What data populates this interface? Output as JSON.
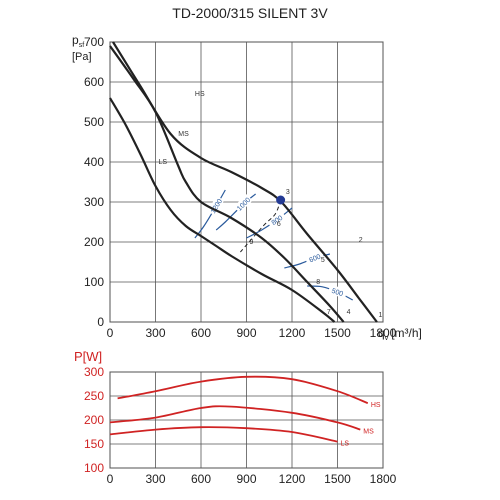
{
  "chart_data": [
    {
      "type": "line",
      "title": "TD-2000/315 SILENT 3V",
      "ylabel_main": "p",
      "ylabel_sub": "sf",
      "ylabel_unit": "[Pa]",
      "xlabel_main": "q",
      "xlabel_sub": "v",
      "xlabel_unit": "[m³/h]",
      "xlim": [
        0,
        1800
      ],
      "ylim": [
        0,
        700
      ],
      "x_ticks": [
        0,
        300,
        600,
        900,
        1200,
        1500,
        1800
      ],
      "y_ticks": [
        0,
        100,
        200,
        300,
        400,
        500,
        600,
        700
      ],
      "grid": true,
      "series": [
        {
          "name": "HS",
          "color": "#222222",
          "points": [
            [
              20,
              700
            ],
            [
              200,
              590
            ],
            [
              400,
              470
            ],
            [
              600,
              410
            ],
            [
              800,
              375
            ],
            [
              1000,
              335
            ],
            [
              1130,
              300
            ],
            [
              1300,
              220
            ],
            [
              1500,
              130
            ],
            [
              1640,
              60
            ],
            [
              1760,
              0
            ]
          ]
        },
        {
          "name": "MS",
          "color": "#222222",
          "points": [
            [
              0,
              690
            ],
            [
              150,
              610
            ],
            [
              300,
              525
            ],
            [
              450,
              390
            ],
            [
              500,
              350
            ],
            [
              600,
              300
            ],
            [
              800,
              260
            ],
            [
              1000,
              210
            ],
            [
              1150,
              160
            ],
            [
              1300,
              100
            ],
            [
              1450,
              40
            ],
            [
              1540,
              0
            ]
          ]
        },
        {
          "name": "LS",
          "color": "#222222",
          "points": [
            [
              0,
              560
            ],
            [
              100,
              495
            ],
            [
              200,
              420
            ],
            [
              300,
              340
            ],
            [
              400,
              280
            ],
            [
              500,
              240
            ],
            [
              600,
              215
            ],
            [
              700,
              190
            ],
            [
              800,
              165
            ],
            [
              1000,
              120
            ],
            [
              1200,
              80
            ],
            [
              1400,
              25
            ],
            [
              1480,
              0
            ]
          ]
        }
      ],
      "resistance_curves": [
        {
          "name": "1200",
          "color": "#2a5a9c",
          "points": [
            [
              560,
              210
            ],
            [
              620,
              240
            ],
            [
              700,
              290
            ],
            [
              760,
              330
            ]
          ]
        },
        {
          "name": "1000",
          "color": "#2a5a9c",
          "points": [
            [
              700,
              230
            ],
            [
              760,
              250
            ],
            [
              880,
              295
            ],
            [
              960,
              320
            ]
          ]
        },
        {
          "name": "800",
          "color": "#2a5a9c",
          "points": [
            [
              900,
              210
            ],
            [
              1000,
              230
            ],
            [
              1100,
              255
            ],
            [
              1200,
              285
            ]
          ]
        },
        {
          "name": "600",
          "color": "#2a5a9c",
          "points": [
            [
              1150,
              135
            ],
            [
              1250,
              145
            ],
            [
              1350,
              160
            ],
            [
              1450,
              170
            ]
          ]
        },
        {
          "name": "500",
          "color": "#2a5a9c",
          "points": [
            [
              1300,
              90
            ],
            [
              1400,
              88
            ],
            [
              1500,
              75
            ],
            [
              1600,
              55
            ]
          ]
        }
      ],
      "dashed_lines": [
        {
          "points": [
            [
              1125,
              305
            ],
            [
              1090,
              270
            ],
            [
              1010,
              240
            ],
            [
              860,
              175
            ]
          ]
        }
      ],
      "marked_point": {
        "x": 1125,
        "y": 305,
        "color": "#233a94"
      },
      "point_labels": [
        {
          "text": "1",
          "x": 1770,
          "y": 12
        },
        {
          "text": "2",
          "x": 1640,
          "y": 200
        },
        {
          "text": "3",
          "x": 1160,
          "y": 320
        },
        {
          "text": "4",
          "x": 1560,
          "y": 20
        },
        {
          "text": "5",
          "x": 1390,
          "y": 150
        },
        {
          "text": "6",
          "x": 1100,
          "y": 240
        },
        {
          "text": "7",
          "x": 1430,
          "y": 20
        },
        {
          "text": "8",
          "x": 1360,
          "y": 95
        },
        {
          "text": "9",
          "x": 920,
          "y": 195
        }
      ],
      "curve_labels": [
        {
          "text": "HS",
          "x": 560,
          "y": 565
        },
        {
          "text": "MS",
          "x": 450,
          "y": 465
        },
        {
          "text": "LS",
          "x": 320,
          "y": 395
        }
      ]
    },
    {
      "type": "line",
      "ylabel": "P[W]",
      "xlim": [
        0,
        1800
      ],
      "ylim": [
        100,
        300
      ],
      "x_ticks": [
        0,
        300,
        600,
        900,
        1200,
        1500,
        1800
      ],
      "y_ticks": [
        100,
        150,
        200,
        250,
        300
      ],
      "grid": true,
      "series": [
        {
          "name": "HS",
          "color": "#d02323",
          "points": [
            [
              50,
              245
            ],
            [
              300,
              260
            ],
            [
              600,
              280
            ],
            [
              900,
              290
            ],
            [
              1200,
              285
            ],
            [
              1500,
              260
            ],
            [
              1700,
              235
            ]
          ]
        },
        {
          "name": "MS",
          "color": "#d02323",
          "points": [
            [
              0,
              195
            ],
            [
              300,
              205
            ],
            [
              600,
              225
            ],
            [
              800,
              228
            ],
            [
              1200,
              215
            ],
            [
              1500,
              195
            ],
            [
              1650,
              180
            ]
          ]
        },
        {
          "name": "LS",
          "color": "#d02323",
          "points": [
            [
              0,
              170
            ],
            [
              300,
              180
            ],
            [
              600,
              185
            ],
            [
              900,
              183
            ],
            [
              1200,
              175
            ],
            [
              1500,
              155
            ]
          ]
        }
      ]
    }
  ]
}
